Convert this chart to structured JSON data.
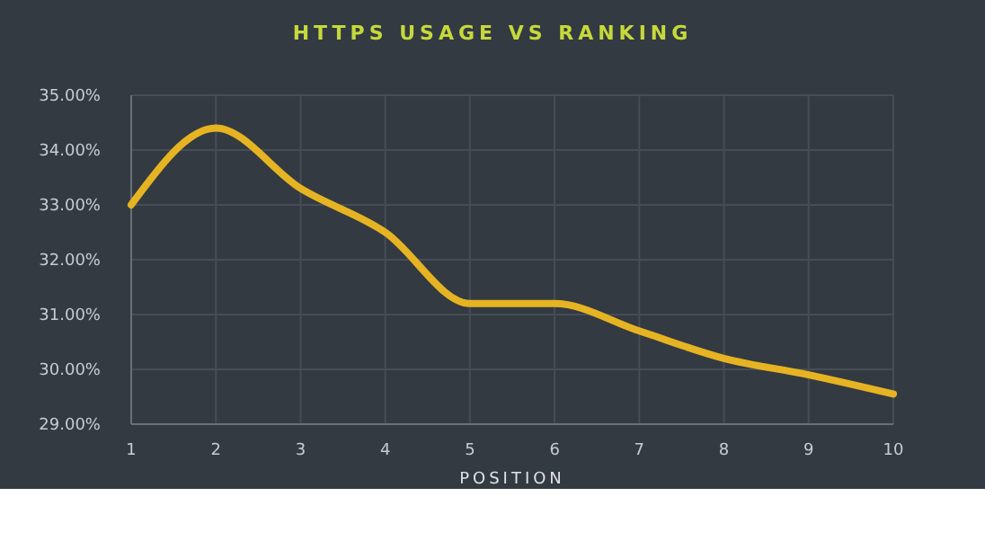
{
  "chart_data": {
    "type": "line",
    "title": "HTTPS USAGE VS RANKING",
    "xlabel": "POSITION",
    "x": [
      1,
      2,
      3,
      4,
      5,
      6,
      7,
      8,
      9,
      10
    ],
    "series": [
      {
        "color": "#e6b422",
        "values": [
          33.0,
          34.4,
          33.3,
          32.5,
          31.2,
          31.2,
          30.7,
          30.2,
          29.9,
          29.55
        ]
      }
    ],
    "xlim": [
      1,
      10
    ],
    "xticks": [
      1,
      2,
      3,
      4,
      5,
      6,
      7,
      8,
      9,
      10
    ],
    "ylim": [
      29,
      35
    ],
    "yticks": [
      {
        "value": 29,
        "label": "29.00%"
      },
      {
        "value": 30,
        "label": "30.00%"
      },
      {
        "value": 31,
        "label": "31.00%"
      },
      {
        "value": 32,
        "label": "32.00%"
      },
      {
        "value": 33,
        "label": "33.00%"
      },
      {
        "value": 34,
        "label": "34.00%"
      },
      {
        "value": 35,
        "label": "35.00%"
      }
    ],
    "grid": true,
    "marker": "none",
    "line_style": "solid"
  }
}
